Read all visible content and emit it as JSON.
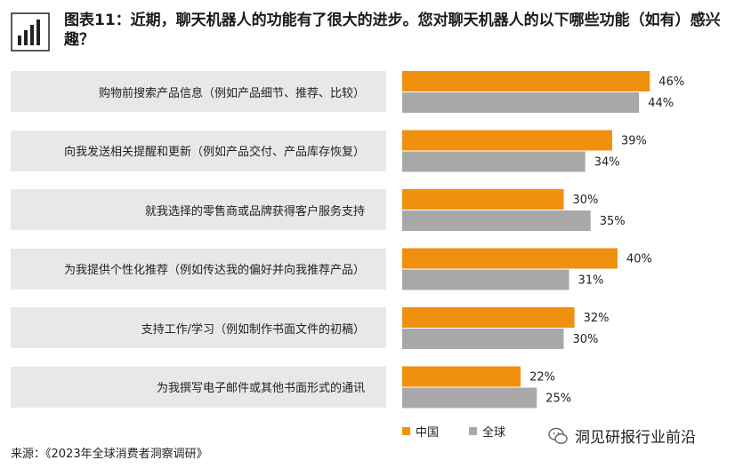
{
  "title": "图表11：近期，聊天机器人的功能有了很大的进步。您对聊天机器人的以下哪些功能（如有）感兴趣？",
  "source": "来源：《2023年全球消费者洞察调研》",
  "watermark": "洞见研报行业前沿",
  "colors": {
    "china": "#f0900f",
    "global": "#a8a8a8",
    "label_bg": "#e8e8e8"
  },
  "icons": {
    "title_icon": "bar-chart-icon",
    "watermark_icon": "wechat-icon"
  },
  "chart_data": {
    "type": "bar",
    "orientation": "horizontal",
    "categories": [
      "购物前搜索产品信息（例如产品细节、推荐、比较）",
      "向我发送相关提醒和更新（例如产品交付、产品库存恢复）",
      "就我选择的零售商或品牌获得客户服务支持",
      "为我提供个性化推荐（例如传达我的偏好并向我推荐产品）",
      "支持工作/学习（例如制作书面文件的初稿）",
      "为我撰写电子邮件或其他书面形式的通讯"
    ],
    "series": [
      {
        "name": "中国",
        "values": [
          46,
          39,
          30,
          40,
          32,
          22
        ]
      },
      {
        "name": "全球",
        "values": [
          44,
          34,
          35,
          31,
          30,
          25
        ]
      }
    ],
    "value_labels": [
      [
        "46%",
        "39%",
        "30%",
        "40%",
        "32%",
        "22%"
      ],
      [
        "44%",
        "34%",
        "35%",
        "31%",
        "30%",
        "25%"
      ]
    ],
    "unit": "%",
    "xlim": [
      0,
      50
    ],
    "grid": false,
    "legend_position": "bottom-left"
  }
}
